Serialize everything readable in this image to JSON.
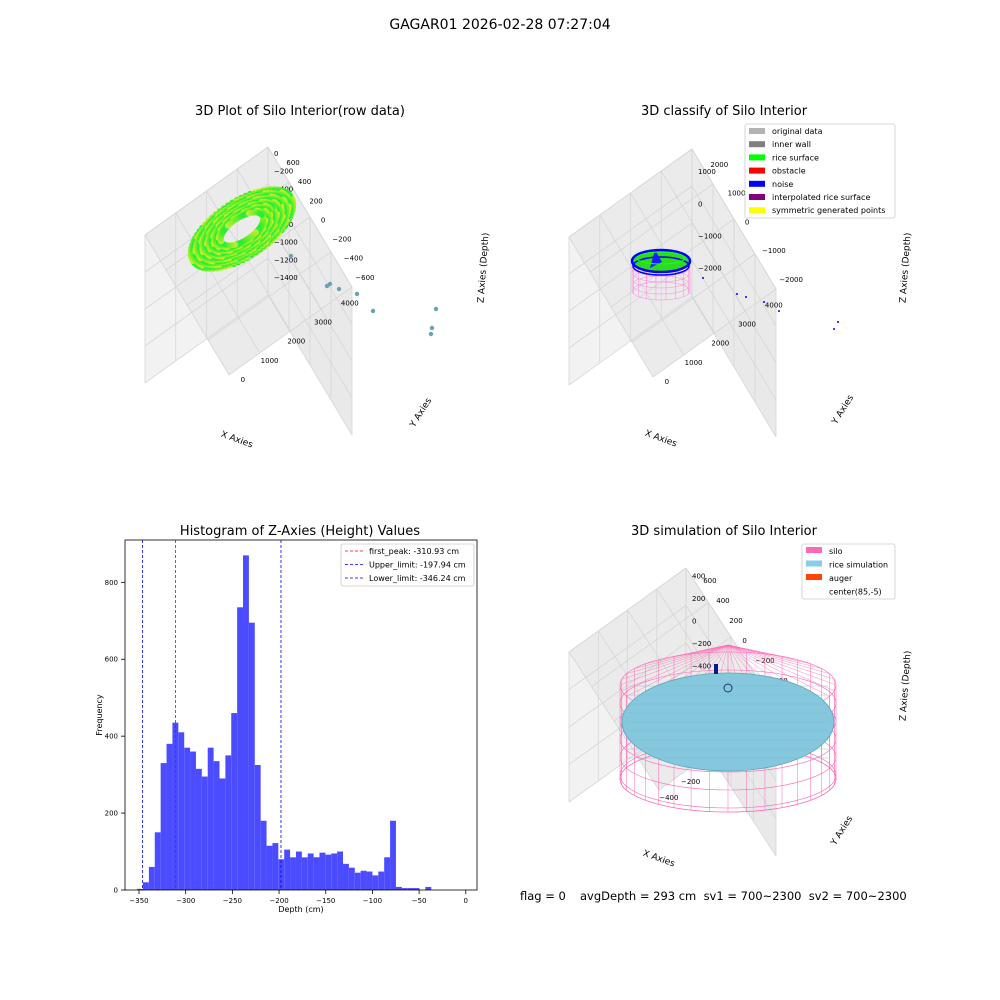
{
  "suptitle": "GAGAR01 2026-02-28 07:27:04",
  "panels": {
    "raw": {
      "title": "3D Plot of Silo Interior(row data)",
      "xlabel": "X Axies",
      "ylabel": "Y Axies",
      "zlabel": "Z Axies (Depth)",
      "xticks": [
        "0",
        "1000",
        "2000",
        "3000",
        "4000"
      ],
      "yticks": [
        "600",
        "400",
        "200",
        "0",
        "−200",
        "−400",
        "−600"
      ],
      "zticks": [
        "0",
        "−200",
        "−400",
        "−600",
        "−800",
        "−1000",
        "−1200",
        "−1400"
      ]
    },
    "classify": {
      "title": "3D classify of Silo Interior",
      "xlabel": "X Axies",
      "ylabel": "Y Axies",
      "zlabel": "Z Axies (Depth)",
      "xticks": [
        "0",
        "1000",
        "2000",
        "3000",
        "4000"
      ],
      "yticks": [
        "2000",
        "1000",
        "0",
        "−1000",
        "−2000"
      ],
      "zticks": [
        "1000",
        "0",
        "−1000",
        "−2000"
      ],
      "legend": [
        {
          "label": "original data",
          "color": "#b3b3b3"
        },
        {
          "label": "inner wall",
          "color": "#808080"
        },
        {
          "label": "rice surface",
          "color": "#00ff00"
        },
        {
          "label": "obstacle",
          "color": "#ff0000"
        },
        {
          "label": "noise",
          "color": "#0000ff"
        },
        {
          "label": "interpolated rice surface",
          "color": "#800080"
        },
        {
          "label": "symmetric generated points",
          "color": "#ffff00"
        }
      ]
    },
    "simulation": {
      "title": "3D simulation of Silo Interior",
      "xlabel": "X Axies",
      "ylabel": "Y Axies",
      "zlabel": "Z Axies (Depth)",
      "xticks": [
        "−400",
        "−200",
        "0",
        "200",
        "400",
        "600"
      ],
      "yticks": [
        "600",
        "400",
        "200",
        "0",
        "−200",
        "−400",
        "−600"
      ],
      "zticks": [
        "400",
        "200",
        "0",
        "−200",
        "−400",
        "−600",
        "−800"
      ],
      "legend": [
        {
          "label": "silo",
          "color": "#ff69b4"
        },
        {
          "label": "rice simulation",
          "color": "#87ceeb"
        },
        {
          "label": "auger",
          "color": "#ff4500"
        },
        {
          "label": "center(85,-5)",
          "color": "#ffffff"
        }
      ]
    }
  },
  "chart_data": {
    "type": "bar",
    "title": "Histogram of Z-Axies (Height) Values",
    "xlabel": "Depth (cm)",
    "ylabel": "Frequency",
    "xlim": [
      -365,
      12
    ],
    "ylim": [
      0,
      910
    ],
    "xticks": [
      -350,
      -300,
      -250,
      -200,
      -150,
      -100,
      -50,
      0
    ],
    "yticks": [
      0,
      200,
      400,
      600,
      800
    ],
    "bar_color": "#4b4bff",
    "bin_width": 6.3,
    "bins_start": -352,
    "values": [
      3,
      20,
      60,
      150,
      330,
      380,
      435,
      410,
      370,
      360,
      315,
      295,
      370,
      335,
      290,
      350,
      460,
      735,
      870,
      695,
      325,
      180,
      115,
      122,
      80,
      105,
      85,
      100,
      85,
      95,
      85,
      97,
      92,
      95,
      100,
      68,
      58,
      45,
      50,
      48,
      38,
      48,
      85,
      180,
      8,
      5,
      5,
      5,
      0,
      8
    ],
    "lines": [
      {
        "label": "first_peak: -310.93 cm",
        "x": -310.93,
        "color": "#ff0000"
      },
      {
        "label": "Upper_limit: -197.94 cm",
        "x": -197.94,
        "color": "#0000ff"
      },
      {
        "label": "Lower_limit: -346.24 cm",
        "x": -346.24,
        "color": "#0000ff"
      }
    ],
    "legend_position": "top-right"
  },
  "footer": {
    "flag": "flag = 0",
    "stats": "avgDepth = 293 cm  sv1 = 700~2300  sv2 = 700~2300"
  }
}
